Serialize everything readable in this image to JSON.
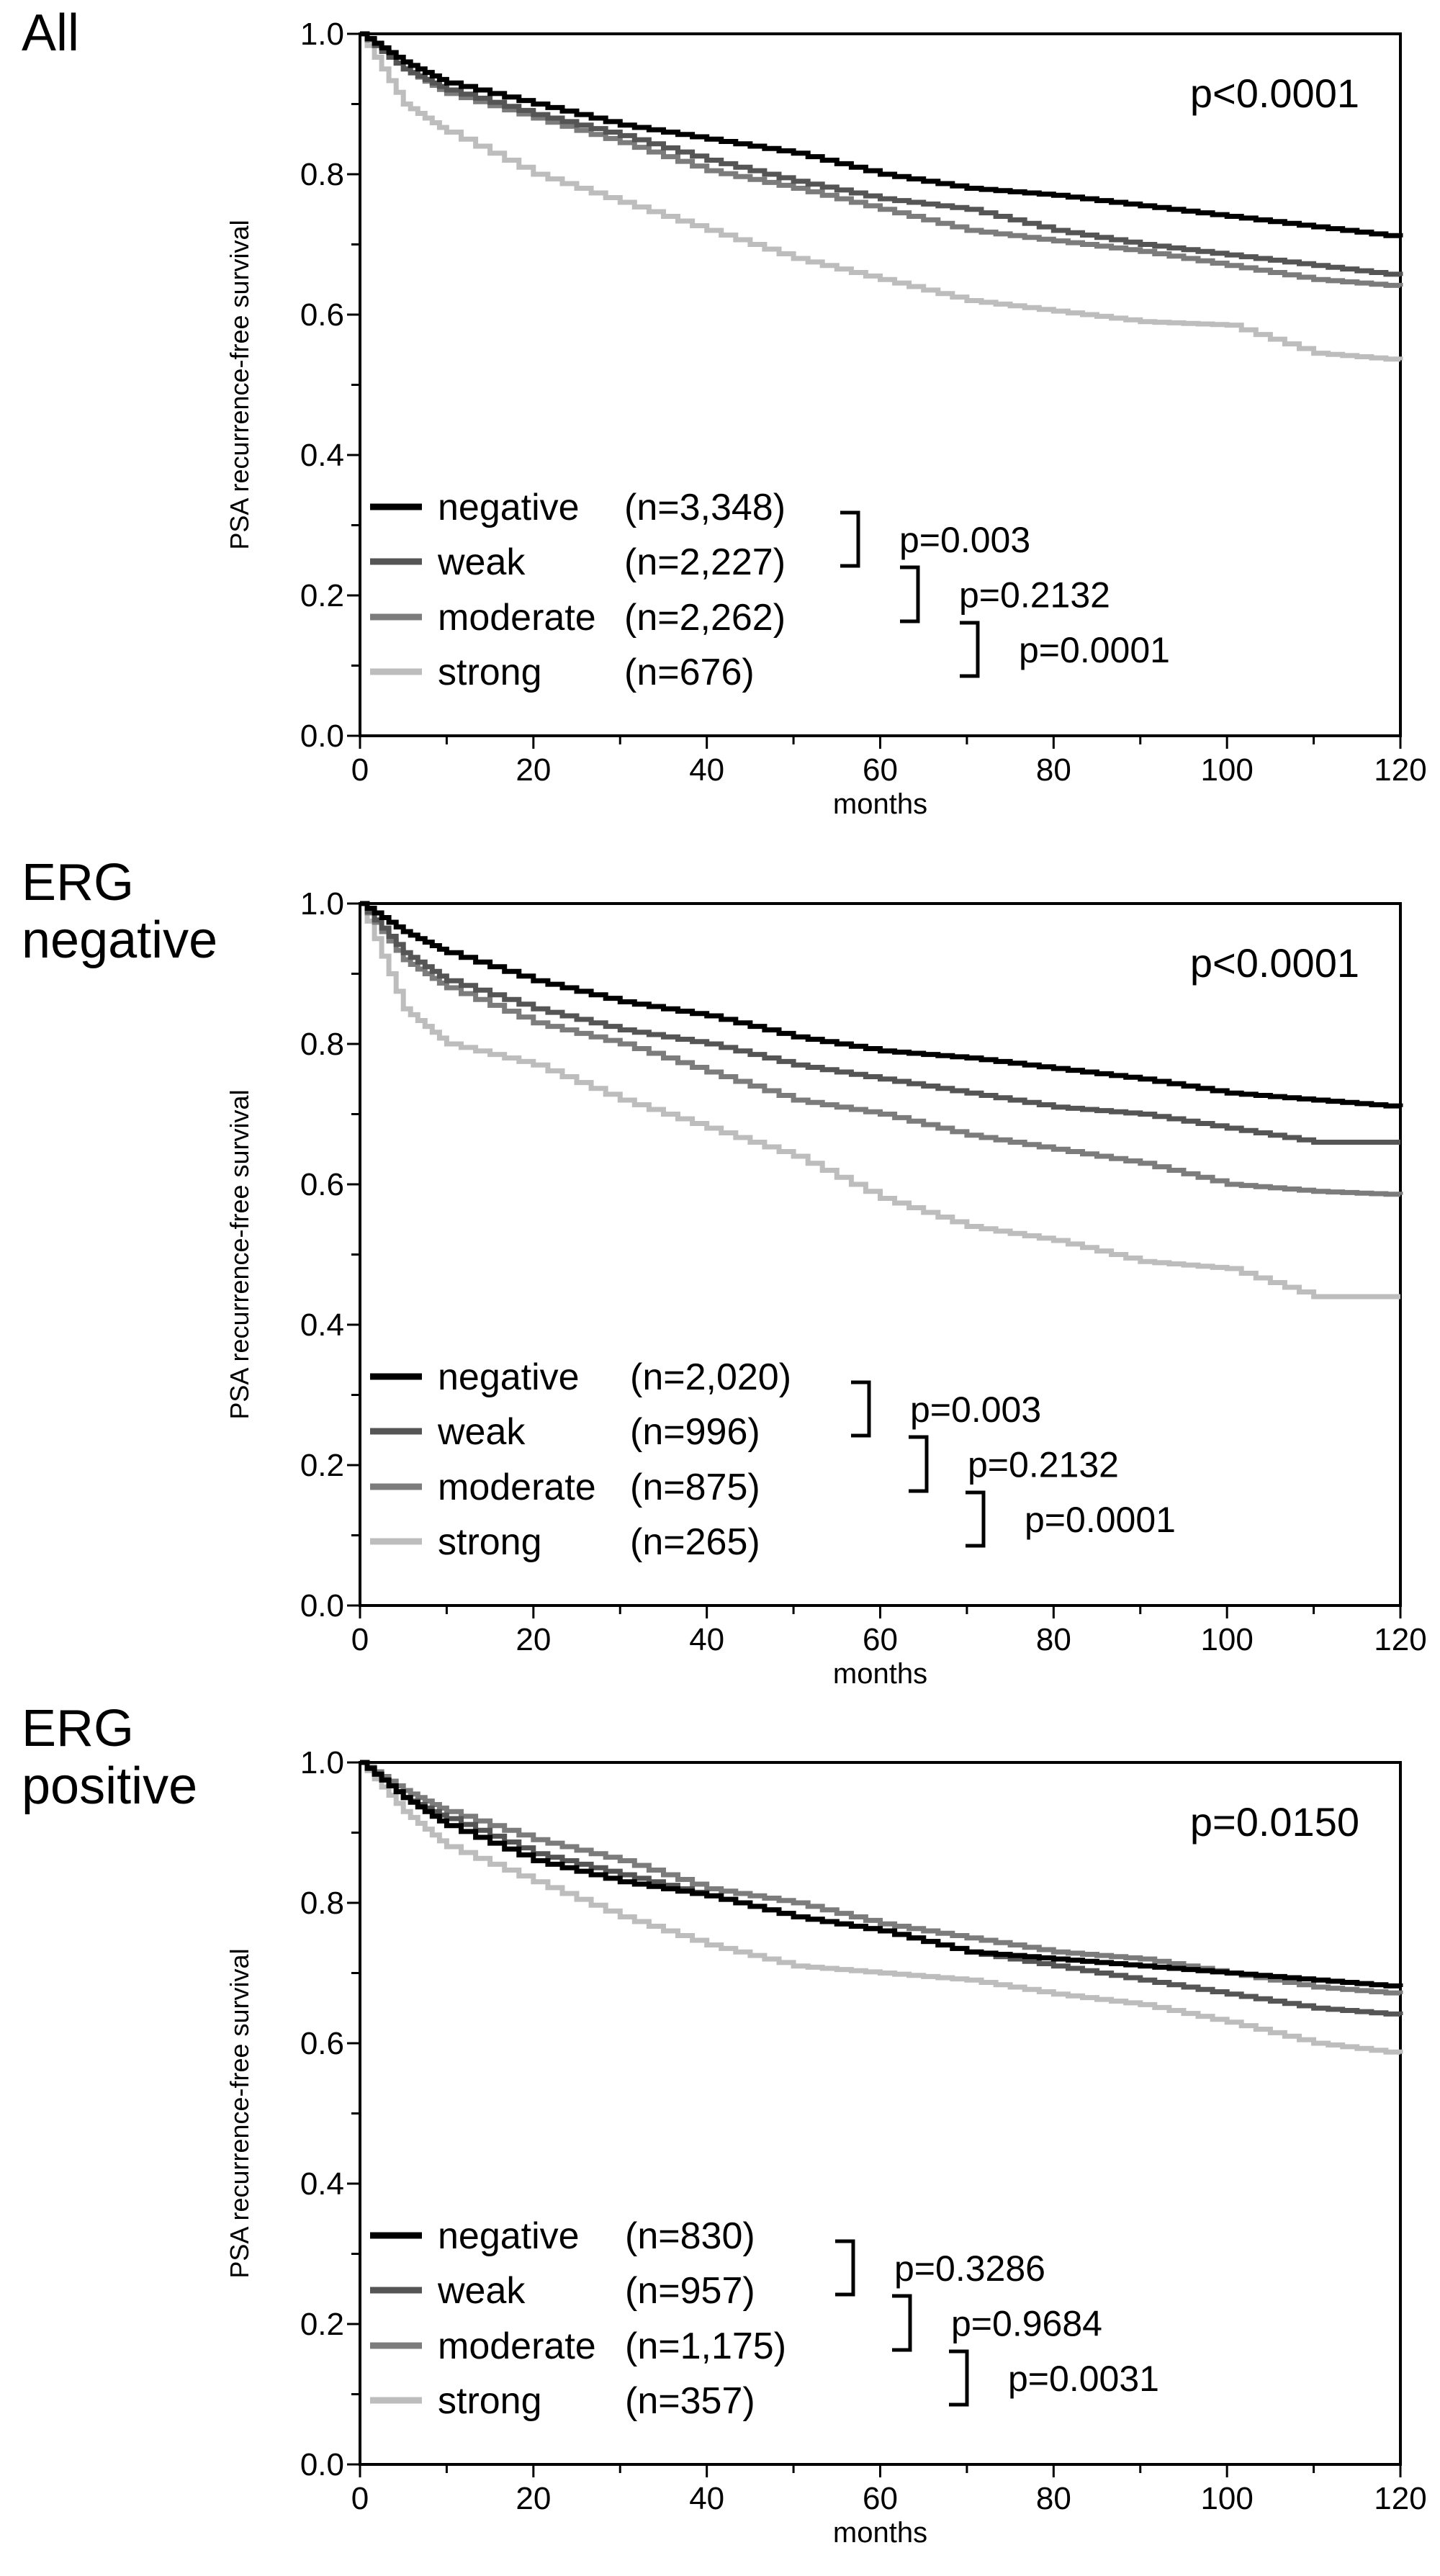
{
  "chart_data": [
    {
      "type": "line",
      "panel_title": [
        "All"
      ],
      "xlabel": "months",
      "ylabel": "PSA recurrence-free survival",
      "xlim": [
        0,
        120
      ],
      "ylim": [
        0,
        1
      ],
      "xtick_labels": [
        "0",
        "20",
        "40",
        "60",
        "80",
        "100",
        "120"
      ],
      "ytick_labels": [
        "0.0",
        "0.2",
        "0.4",
        "0.6",
        "0.8",
        "1.0"
      ],
      "overall_p": "p<0.0001",
      "comparisons": [
        "p=0.003",
        "p=0.2132",
        "p=0.0001"
      ],
      "x": [
        0,
        5,
        10,
        20,
        30,
        40,
        50,
        60,
        70,
        80,
        90,
        100,
        110,
        120
      ],
      "series": [
        {
          "name": "negative",
          "n": "(n=3,348)",
          "color": "#000000",
          "values": [
            1,
            0.96,
            0.93,
            0.9,
            0.87,
            0.85,
            0.83,
            0.8,
            0.78,
            0.77,
            0.755,
            0.74,
            0.725,
            0.71
          ]
        },
        {
          "name": "weak",
          "n": "(n=2,227)",
          "color": "#555555",
          "values": [
            1,
            0.95,
            0.92,
            0.885,
            0.855,
            0.82,
            0.79,
            0.765,
            0.75,
            0.72,
            0.7,
            0.685,
            0.67,
            0.655
          ]
        },
        {
          "name": "moderate",
          "n": "(n=2,262)",
          "color": "#7c7c7c",
          "values": [
            1,
            0.95,
            0.915,
            0.88,
            0.845,
            0.805,
            0.78,
            0.75,
            0.72,
            0.705,
            0.69,
            0.67,
            0.65,
            0.64
          ]
        },
        {
          "name": "strong",
          "n": "(n=676)",
          "color": "#bdbdbd",
          "values": [
            1,
            0.9,
            0.86,
            0.8,
            0.76,
            0.72,
            0.68,
            0.65,
            0.62,
            0.605,
            0.59,
            0.585,
            0.545,
            0.535
          ]
        }
      ]
    },
    {
      "type": "line",
      "panel_title": [
        "ERG",
        "negative"
      ],
      "xlabel": "months",
      "ylabel": "PSA recurrence-free survival",
      "xlim": [
        0,
        120
      ],
      "ylim": [
        0,
        1
      ],
      "xtick_labels": [
        "0",
        "20",
        "40",
        "60",
        "80",
        "100",
        "120"
      ],
      "ytick_labels": [
        "0.0",
        "0.2",
        "0.4",
        "0.6",
        "0.8",
        "1.0"
      ],
      "overall_p": "p<0.0001",
      "comparisons": [
        "p=0.003",
        "p=0.2132",
        "p=0.0001"
      ],
      "x": [
        0,
        5,
        10,
        20,
        30,
        40,
        50,
        60,
        70,
        80,
        90,
        100,
        110,
        120
      ],
      "series": [
        {
          "name": "negative",
          "n": "(n=2,020)",
          "color": "#000000",
          "values": [
            1,
            0.96,
            0.93,
            0.89,
            0.86,
            0.84,
            0.81,
            0.79,
            0.78,
            0.765,
            0.75,
            0.73,
            0.72,
            0.71
          ]
        },
        {
          "name": "weak",
          "n": "(n=996)",
          "color": "#555555",
          "values": [
            1,
            0.93,
            0.89,
            0.85,
            0.82,
            0.8,
            0.77,
            0.75,
            0.73,
            0.71,
            0.7,
            0.68,
            0.66,
            0.66
          ]
        },
        {
          "name": "moderate",
          "n": "(n=875)",
          "color": "#7c7c7c",
          "values": [
            1,
            0.92,
            0.88,
            0.83,
            0.8,
            0.76,
            0.72,
            0.7,
            0.67,
            0.65,
            0.63,
            0.6,
            0.59,
            0.585
          ]
        },
        {
          "name": "strong",
          "n": "(n=265)",
          "color": "#bdbdbd",
          "values": [
            1,
            0.85,
            0.8,
            0.77,
            0.72,
            0.68,
            0.64,
            0.58,
            0.54,
            0.52,
            0.49,
            0.48,
            0.44,
            0.44
          ]
        }
      ]
    },
    {
      "type": "line",
      "panel_title": [
        "ERG",
        "positive"
      ],
      "xlabel": "months",
      "ylabel": "PSA recurrence-free survival",
      "xlim": [
        0,
        120
      ],
      "ylim": [
        0,
        1
      ],
      "xtick_labels": [
        "0",
        "20",
        "40",
        "60",
        "80",
        "100",
        "120"
      ],
      "ytick_labels": [
        "0.0",
        "0.2",
        "0.4",
        "0.6",
        "0.8",
        "1.0"
      ],
      "overall_p": "p=0.0150",
      "comparisons": [
        "p=0.3286",
        "p=0.9684",
        "p=0.0031"
      ],
      "x": [
        0,
        5,
        10,
        20,
        30,
        40,
        50,
        60,
        70,
        80,
        90,
        100,
        110,
        120
      ],
      "series": [
        {
          "name": "negative",
          "n": "(n=830)",
          "color": "#000000",
          "values": [
            1,
            0.95,
            0.91,
            0.86,
            0.83,
            0.81,
            0.78,
            0.76,
            0.73,
            0.72,
            0.71,
            0.7,
            0.69,
            0.68
          ]
        },
        {
          "name": "weak",
          "n": "(n=957)",
          "color": "#555555",
          "values": [
            1,
            0.95,
            0.92,
            0.87,
            0.84,
            0.81,
            0.78,
            0.76,
            0.73,
            0.71,
            0.69,
            0.67,
            0.65,
            0.64
          ]
        },
        {
          "name": "moderate",
          "n": "(n=1,175)",
          "color": "#7c7c7c",
          "values": [
            1,
            0.96,
            0.93,
            0.89,
            0.86,
            0.82,
            0.8,
            0.77,
            0.75,
            0.73,
            0.72,
            0.7,
            0.68,
            0.67
          ]
        },
        {
          "name": "strong",
          "n": "(n=357)",
          "color": "#bdbdbd",
          "values": [
            1,
            0.93,
            0.88,
            0.83,
            0.78,
            0.74,
            0.71,
            0.7,
            0.69,
            0.67,
            0.655,
            0.63,
            0.6,
            0.585
          ]
        }
      ]
    }
  ]
}
